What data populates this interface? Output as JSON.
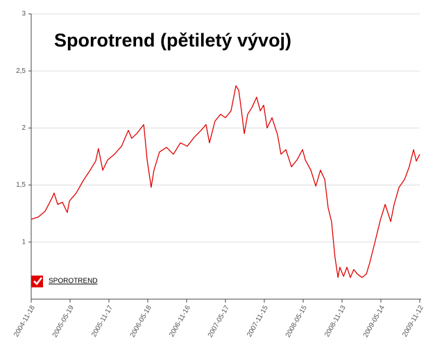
{
  "chart_data": {
    "type": "line",
    "title": "Sporotrend (pětiletý vývoj)",
    "x": [
      "2004-11-18",
      "2004-12-21",
      "2005-01-22",
      "2005-02-24",
      "2005-03-05",
      "2005-03-22",
      "2005-04-13",
      "2005-05-06",
      "2005-05-16",
      "2005-06-17",
      "2005-07-20",
      "2005-08-21",
      "2005-09-16",
      "2005-09-29",
      "2005-10-19",
      "2005-11-11",
      "2005-12-13",
      "2006-01-15",
      "2006-02-16",
      "2006-03-04",
      "2006-03-27",
      "2006-04-29",
      "2006-05-15",
      "2006-06-03",
      "2006-06-16",
      "2006-07-12",
      "2006-08-14",
      "2006-09-15",
      "2006-10-18",
      "2006-11-19",
      "2006-12-22",
      "2007-01-23",
      "2007-02-15",
      "2007-03-03",
      "2007-03-29",
      "2007-04-24",
      "2007-05-17",
      "2007-06-12",
      "2007-07-05",
      "2007-07-18",
      "2007-07-31",
      "2007-08-13",
      "2007-08-29",
      "2007-09-18",
      "2007-10-10",
      "2007-10-27",
      "2007-11-12",
      "2007-11-28",
      "2007-12-21",
      "2008-01-16",
      "2008-02-01",
      "2008-02-24",
      "2008-03-21",
      "2008-04-16",
      "2008-05-12",
      "2008-05-25",
      "2008-06-20",
      "2008-07-13",
      "2008-08-04",
      "2008-08-24",
      "2008-09-09",
      "2008-09-25",
      "2008-10-11",
      "2008-10-25",
      "2008-11-03",
      "2008-11-20",
      "2008-12-06",
      "2008-12-22",
      "2009-01-07",
      "2009-01-24",
      "2009-02-15",
      "2009-03-07",
      "2009-03-23",
      "2009-04-15",
      "2009-05-11",
      "2009-06-03",
      "2009-06-29",
      "2009-07-15",
      "2009-08-07",
      "2009-09-02",
      "2009-09-24",
      "2009-10-14",
      "2009-10-27",
      "2009-11-12"
    ],
    "series": [
      {
        "name": "SPOROTREND",
        "color": "#e00000",
        "values": [
          1.2,
          1.22,
          1.27,
          1.39,
          1.43,
          1.33,
          1.35,
          1.26,
          1.36,
          1.43,
          1.54,
          1.63,
          1.71,
          1.82,
          1.63,
          1.72,
          1.77,
          1.84,
          1.98,
          1.91,
          1.95,
          2.03,
          1.72,
          1.48,
          1.63,
          1.79,
          1.83,
          1.77,
          1.87,
          1.84,
          1.92,
          1.98,
          2.03,
          1.87,
          2.06,
          2.12,
          2.09,
          2.15,
          2.37,
          2.33,
          2.15,
          1.95,
          2.12,
          2.18,
          2.27,
          2.15,
          2.2,
          2.0,
          2.09,
          1.94,
          1.77,
          1.81,
          1.66,
          1.72,
          1.81,
          1.72,
          1.63,
          1.49,
          1.63,
          1.55,
          1.3,
          1.18,
          0.87,
          0.69,
          0.78,
          0.7,
          0.78,
          0.69,
          0.76,
          0.72,
          0.69,
          0.72,
          0.82,
          0.99,
          1.19,
          1.33,
          1.18,
          1.33,
          1.48,
          1.55,
          1.66,
          1.81,
          1.71,
          1.77
        ]
      }
    ],
    "xlim": [
      "2004-11-18",
      "2009-11-12"
    ],
    "xticks": [
      "2004-11-18",
      "2005-05-19",
      "2005-11-17",
      "2006-05-18",
      "2006-11-16",
      "2007-05-17",
      "2007-11-15",
      "2008-05-15",
      "2008-11-13",
      "2009-05-14",
      "2009-11-12"
    ],
    "ylim": [
      0.5,
      3
    ],
    "yticks": [
      1,
      {
        "value": 1.5,
        "label": "1,5"
      },
      2,
      {
        "value": 2.5,
        "label": "2,5"
      },
      3
    ],
    "grid": true
  }
}
